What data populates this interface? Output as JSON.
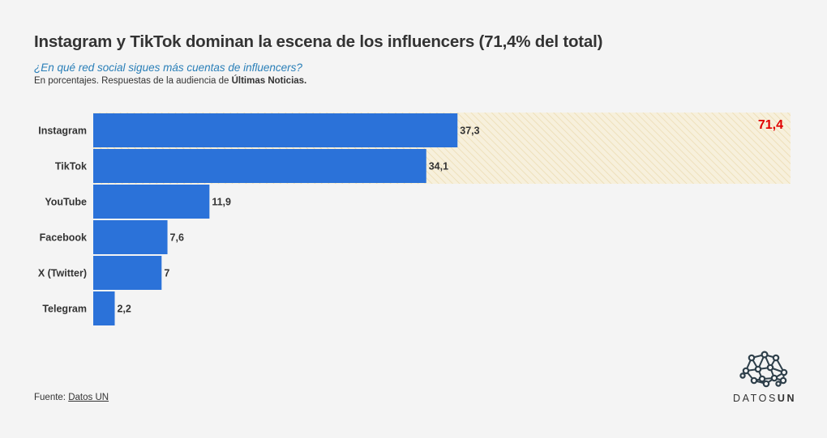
{
  "header": {
    "title": "Instagram y TikTok dominan la escena de los influencers (71,4% del total)",
    "subtitle": "¿En qué red social sigues más cuentas de influencers?",
    "note_prefix": "En porcentajes. Respuestas de la audiencia de ",
    "note_bold": "Últimas Noticias."
  },
  "chart_data": {
    "type": "bar",
    "orientation": "horizontal",
    "categories": [
      "Instagram",
      "TikTok",
      "YouTube",
      "Facebook",
      "X (Twitter)",
      "Telegram"
    ],
    "values": [
      37.3,
      34.1,
      11.9,
      7.6,
      7,
      2.2
    ],
    "value_labels": [
      "37,3",
      "34,1",
      "11,9",
      "7,6",
      "7",
      "2,2"
    ],
    "highlight": {
      "categories": [
        "Instagram",
        "TikTok"
      ],
      "total": 71.4,
      "label": "71,4"
    },
    "xlim": [
      0,
      71.4
    ],
    "colors": {
      "bar": "#2b72d9",
      "highlight_label": "#e00000",
      "highlight_band": "#f7f0dc",
      "highlight_hatch": "#ecdcb3"
    },
    "grid": false,
    "legend": "none"
  },
  "footer": {
    "source_prefix": "Fuente: ",
    "source_link": "Datos UN"
  },
  "logo": {
    "icon": "network-icon",
    "text_light": "DATOS",
    "text_bold": "UN"
  }
}
